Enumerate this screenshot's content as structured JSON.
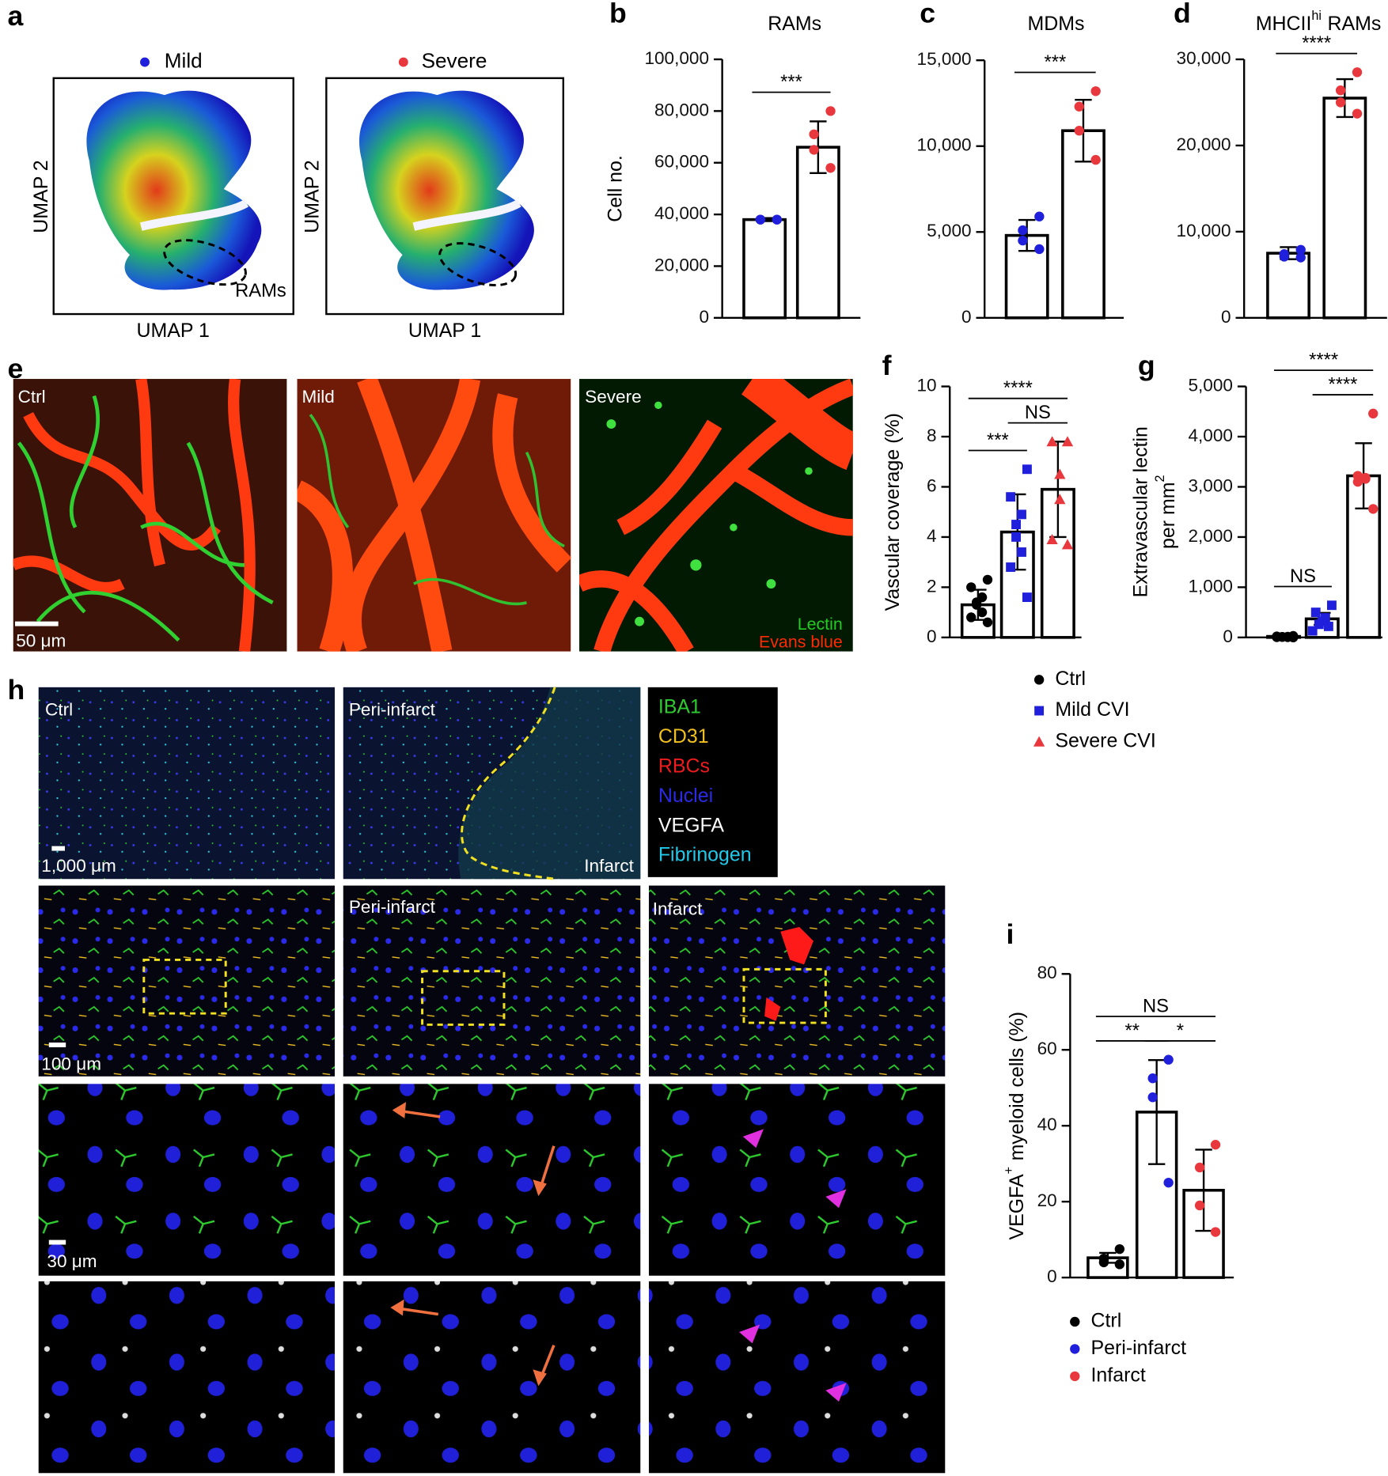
{
  "figure": {
    "panel_letters": [
      "a",
      "b",
      "c",
      "d",
      "e",
      "f",
      "g",
      "h",
      "i"
    ],
    "umap": {
      "groups": [
        {
          "name": "Mild",
          "color": "#1f1fdc"
        },
        {
          "name": "Severe",
          "color": "#e8383d"
        }
      ],
      "xlabel": "UMAP 1",
      "ylabel": "UMAP 2",
      "region": "RAMs"
    },
    "vessels": {
      "panels": [
        "Ctrl",
        "Mild",
        "Severe"
      ],
      "scale": "50 μm",
      "channels": [
        {
          "name": "Lectin",
          "color": "#22cc22"
        },
        {
          "name": "Evans blue",
          "color": "#ff2a00"
        }
      ]
    },
    "tissue": {
      "row1": [
        "Ctrl",
        "Peri-infarct",
        "Infarct"
      ],
      "row2": [
        "Peri-infarct",
        "Infarct"
      ],
      "scales": [
        "1,000 μm",
        "100 μm",
        "30 μm"
      ],
      "channels": [
        {
          "name": "IBA1",
          "color": "#2ecc2e"
        },
        {
          "name": "CD31",
          "color": "#f0c020"
        },
        {
          "name": "RBCs",
          "color": "#ee1c1c"
        },
        {
          "name": "Nuclei",
          "color": "#2a2ae8"
        },
        {
          "name": "VEGFA",
          "color": "#ffffff"
        },
        {
          "name": "Fibrinogen",
          "color": "#22c8e8"
        }
      ]
    }
  },
  "chart_data": [
    {
      "type": "bar",
      "title": [
        "RAMs"
      ],
      "ylabel": [
        [
          "Cell no."
        ]
      ],
      "categories": [
        null,
        null
      ],
      "values": [
        38000,
        66000
      ],
      "errors": [
        600,
        10000
      ],
      "points": [
        [
          38000,
          38000,
          38000,
          38000
        ],
        [
          80000,
          71000,
          65000,
          58000
        ]
      ],
      "colors": [
        "#1f1fdc",
        "#e8383d"
      ],
      "markers": [
        "circle",
        "circle"
      ],
      "ylim": [
        0,
        100000
      ],
      "yticks": [
        0,
        {
          "value": 20000,
          "label": "20,000"
        },
        {
          "value": 40000,
          "label": "40,000"
        },
        {
          "value": 60000,
          "label": "60,000"
        },
        {
          "value": 80000,
          "label": "80,000"
        },
        {
          "value": 100000,
          "label": "100,000"
        }
      ],
      "brackets": [
        {
          "label": "***",
          "between": [
            0,
            1
          ]
        }
      ]
    },
    {
      "type": "bar",
      "title": [
        "MDMs"
      ],
      "categories": [
        null,
        null
      ],
      "values": [
        4800,
        10900
      ],
      "errors": [
        900,
        1800
      ],
      "points": [
        [
          5900,
          5100,
          4500,
          4000
        ],
        [
          13200,
          12300,
          10900,
          9200
        ]
      ],
      "colors": [
        "#1f1fdc",
        "#e8383d"
      ],
      "markers": [
        "circle",
        "circle"
      ],
      "ylim": [
        0,
        15000
      ],
      "yticks": [
        0,
        {
          "value": 5000,
          "label": "5,000"
        },
        {
          "value": 10000,
          "label": "10,000"
        },
        {
          "value": 15000,
          "label": "15,000"
        }
      ],
      "brackets": [
        {
          "label": "***",
          "between": [
            0,
            1
          ]
        }
      ]
    },
    {
      "type": "bar",
      "title": [
        "MHCII",
        "hi",
        "RAMs"
      ],
      "categories": [
        null,
        null
      ],
      "values": [
        7500,
        25500
      ],
      "errors": [
        700,
        2200
      ],
      "points": [
        [
          7900,
          7400,
          7100,
          7000
        ],
        [
          28500,
          26400,
          25000,
          23700
        ]
      ],
      "colors": [
        "#1f1fdc",
        "#e8383d"
      ],
      "markers": [
        "circle",
        "circle"
      ],
      "ylim": [
        0,
        30000
      ],
      "yticks": [
        0,
        {
          "value": 10000,
          "label": "10,000"
        },
        {
          "value": 20000,
          "label": "20,000"
        },
        {
          "value": 30000,
          "label": "30,000"
        }
      ],
      "brackets": [
        {
          "label": "****",
          "between": [
            0,
            1
          ]
        }
      ]
    },
    {
      "type": "bar",
      "ylabel": [
        [
          "Vascular coverage (%)"
        ]
      ],
      "categories": [
        null,
        null,
        null
      ],
      "values": [
        1.3,
        4.2,
        5.9
      ],
      "errors": [
        0.6,
        1.5,
        1.9
      ],
      "points": [
        [
          2.3,
          2.0,
          1.6,
          1.4,
          1.3,
          1.0,
          0.8,
          0.6
        ],
        [
          6.7,
          5.6,
          4.9,
          4.5,
          4.0,
          3.4,
          2.8,
          1.6
        ],
        [
          7.8,
          7.8,
          6.5,
          5.5,
          3.9,
          3.7
        ]
      ],
      "colors": [
        "#000000",
        "#1f1fdc",
        "#e8383d"
      ],
      "markers": [
        "circle",
        "square",
        "triangle"
      ],
      "ylim": [
        0,
        10
      ],
      "yticks": [
        0,
        2,
        4,
        6,
        8,
        10
      ],
      "brackets": [
        {
          "label": "***",
          "between": [
            0,
            1
          ]
        },
        {
          "label": "NS",
          "between": [
            1,
            2
          ]
        },
        {
          "label": "****",
          "between": [
            0,
            2
          ]
        }
      ],
      "legend": [
        "Ctrl",
        "Mild CVI",
        "Severe CVI"
      ]
    },
    {
      "type": "bar",
      "ylabel": [
        [
          "Extravascular lectin"
        ],
        [
          "per mm",
          "2"
        ]
      ],
      "categories": [
        null,
        null,
        null
      ],
      "values": [
        20,
        370,
        3220
      ],
      "errors": [
        10,
        120,
        650
      ],
      "points": [
        [
          30,
          20,
          15,
          10,
          10,
          5,
          5,
          0
        ],
        [
          640,
          500,
          390,
          320,
          260,
          220,
          130
        ],
        [
          4460,
          3220,
          3180,
          3160,
          3100,
          2560
        ]
      ],
      "colors": [
        "#000000",
        "#1f1fdc",
        "#e8383d"
      ],
      "markers": [
        "circle",
        "square",
        "circle"
      ],
      "ylim": [
        0,
        5000
      ],
      "yticks": [
        0,
        {
          "value": 1000,
          "label": "1,000"
        },
        {
          "value": 2000,
          "label": "2,000"
        },
        {
          "value": 3000,
          "label": "3,000"
        },
        {
          "value": 4000,
          "label": "4,000"
        },
        {
          "value": 5000,
          "label": "5,000"
        }
      ],
      "brackets": [
        {
          "label": "NS",
          "between": [
            0,
            1
          ]
        },
        {
          "label": "****",
          "between": [
            1,
            2
          ]
        },
        {
          "label": "****",
          "between": [
            0,
            2
          ]
        }
      ]
    },
    {
      "type": "bar",
      "ylabel": [
        [
          "VEGFA",
          "+",
          "myeloid cells (%)"
        ]
      ],
      "categories": [
        null,
        null,
        null
      ],
      "values": [
        5.2,
        43.6,
        23
      ],
      "errors": [
        1.3,
        13.7,
        10.7
      ],
      "points": [
        [
          7.5,
          5,
          4,
          3.5
        ],
        [
          57.4,
          52.5,
          47.5,
          25
        ],
        [
          35,
          29,
          19,
          12
        ]
      ],
      "colors": [
        "#000000",
        "#1f1fdc",
        "#e8383d"
      ],
      "markers": [
        "circle",
        "circle",
        "circle"
      ],
      "ylim": [
        0,
        80
      ],
      "yticks": [
        0,
        20,
        40,
        60,
        80
      ],
      "brackets": [
        {
          "label": "**",
          "between": [
            0,
            1
          ]
        },
        {
          "label": "*",
          "between": [
            1,
            2
          ]
        },
        {
          "label": "NS",
          "between": [
            0,
            2
          ]
        }
      ],
      "legend": [
        "Ctrl",
        "Peri-infarct",
        "Infarct"
      ]
    }
  ]
}
